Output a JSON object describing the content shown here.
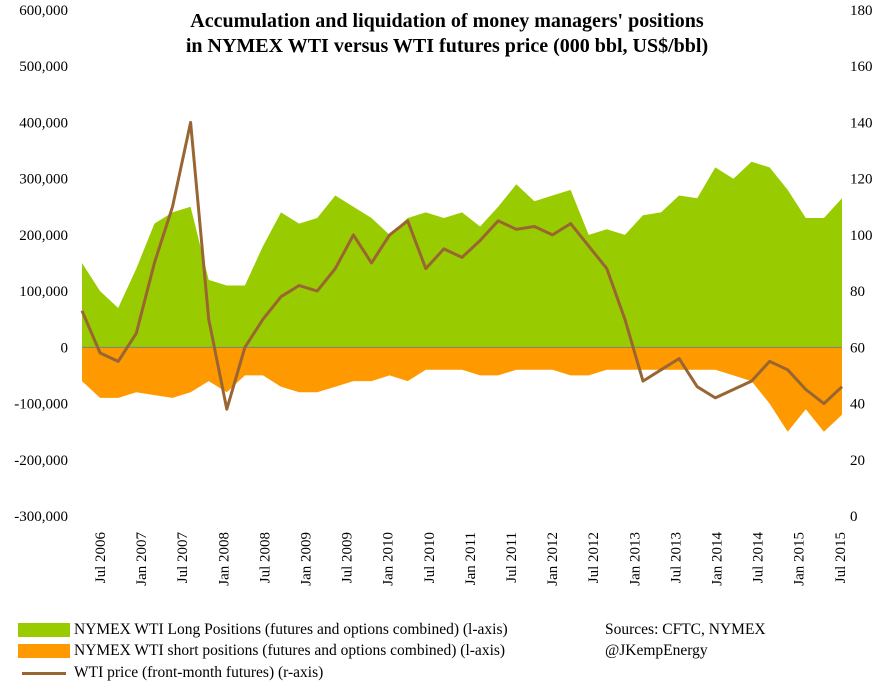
{
  "chart_data": {
    "type": "area",
    "title": [
      "Accumulation and liquidation of  money managers' positions",
      "in NYMEX WTI versus WTI futures price (000 bbl, US$/bbl)"
    ],
    "x_labels": [
      "Jul 2006",
      "Jan 2007",
      "Jul 2007",
      "Jan 2008",
      "Jul 2008",
      "Jan 2009",
      "Jul 2009",
      "Jan 2010",
      "Jul 2010",
      "Jan 2011",
      "Jul 2011",
      "Jan 2012",
      "Jul 2012",
      "Jan 2013",
      "Jul 2013",
      "Jan 2014",
      "Jul 2014",
      "Jan 2015",
      "Jul 2015"
    ],
    "y_left": {
      "min": -300000,
      "max": 600000,
      "ticks": [
        "600,000",
        "500,000",
        "400,000",
        "300,000",
        "200,000",
        "100,000",
        "0",
        "-100,000",
        "-200,000",
        "-300,000"
      ]
    },
    "y_right": {
      "min": 0,
      "max": 180,
      "ticks": [
        "180",
        "160",
        "140",
        "120",
        "100",
        "80",
        "60",
        "40",
        "20",
        "0"
      ]
    },
    "series": [
      {
        "name": "NYMEX WTI Long Positions (futures and options combined) (l-axis)",
        "axis": "left",
        "kind": "area",
        "color": "#99cc00",
        "points": [
          [
            0,
            150000
          ],
          [
            1,
            100000
          ],
          [
            2,
            70000
          ],
          [
            3,
            140000
          ],
          [
            4,
            220000
          ],
          [
            5,
            240000
          ],
          [
            6,
            250000
          ],
          [
            7,
            120000
          ],
          [
            8,
            110000
          ],
          [
            9,
            110000
          ],
          [
            10,
            180000
          ],
          [
            11,
            240000
          ],
          [
            12,
            220000
          ],
          [
            13,
            230000
          ],
          [
            14,
            270000
          ],
          [
            15,
            250000
          ],
          [
            16,
            230000
          ],
          [
            17,
            200000
          ],
          [
            18,
            230000
          ],
          [
            19,
            240000
          ],
          [
            20,
            230000
          ],
          [
            21,
            240000
          ],
          [
            22,
            215000
          ],
          [
            23,
            250000
          ],
          [
            24,
            290000
          ],
          [
            25,
            260000
          ],
          [
            26,
            270000
          ],
          [
            27,
            280000
          ],
          [
            28,
            200000
          ],
          [
            29,
            210000
          ],
          [
            30,
            200000
          ],
          [
            31,
            235000
          ],
          [
            32,
            240000
          ],
          [
            33,
            270000
          ],
          [
            34,
            265000
          ],
          [
            35,
            320000
          ],
          [
            36,
            300000
          ],
          [
            37,
            330000
          ],
          [
            38,
            320000
          ],
          [
            39,
            280000
          ],
          [
            40,
            230000
          ],
          [
            41,
            230000
          ],
          [
            42,
            265000
          ]
        ]
      },
      {
        "name": "NYMEX WTI short positions (futures and options combined) (l-axis)",
        "axis": "left",
        "kind": "area",
        "color": "#ff9900",
        "points": [
          [
            0,
            -60000
          ],
          [
            1,
            -90000
          ],
          [
            2,
            -90000
          ],
          [
            3,
            -80000
          ],
          [
            4,
            -85000
          ],
          [
            5,
            -90000
          ],
          [
            6,
            -80000
          ],
          [
            7,
            -60000
          ],
          [
            8,
            -80000
          ],
          [
            9,
            -50000
          ],
          [
            10,
            -50000
          ],
          [
            11,
            -70000
          ],
          [
            12,
            -80000
          ],
          [
            13,
            -80000
          ],
          [
            14,
            -70000
          ],
          [
            15,
            -60000
          ],
          [
            16,
            -60000
          ],
          [
            17,
            -50000
          ],
          [
            18,
            -60000
          ],
          [
            19,
            -40000
          ],
          [
            20,
            -40000
          ],
          [
            21,
            -40000
          ],
          [
            22,
            -50000
          ],
          [
            23,
            -50000
          ],
          [
            24,
            -40000
          ],
          [
            25,
            -40000
          ],
          [
            26,
            -40000
          ],
          [
            27,
            -50000
          ],
          [
            28,
            -50000
          ],
          [
            29,
            -40000
          ],
          [
            30,
            -40000
          ],
          [
            31,
            -40000
          ],
          [
            32,
            -40000
          ],
          [
            33,
            -40000
          ],
          [
            34,
            -40000
          ],
          [
            35,
            -40000
          ],
          [
            36,
            -50000
          ],
          [
            37,
            -60000
          ],
          [
            38,
            -100000
          ],
          [
            39,
            -150000
          ],
          [
            40,
            -110000
          ],
          [
            41,
            -150000
          ],
          [
            42,
            -120000
          ]
        ]
      },
      {
        "name": "WTI price (front-month futures) (r-axis)",
        "axis": "right",
        "kind": "line",
        "color": "#996633",
        "points": [
          [
            0,
            73
          ],
          [
            1,
            58
          ],
          [
            2,
            55
          ],
          [
            3,
            65
          ],
          [
            4,
            90
          ],
          [
            5,
            110
          ],
          [
            6,
            140
          ],
          [
            7,
            70
          ],
          [
            8,
            38
          ],
          [
            9,
            60
          ],
          [
            10,
            70
          ],
          [
            11,
            78
          ],
          [
            12,
            82
          ],
          [
            13,
            80
          ],
          [
            14,
            88
          ],
          [
            15,
            100
          ],
          [
            16,
            90
          ],
          [
            17,
            100
          ],
          [
            18,
            105
          ],
          [
            19,
            88
          ],
          [
            20,
            95
          ],
          [
            21,
            92
          ],
          [
            22,
            98
          ],
          [
            23,
            105
          ],
          [
            24,
            102
          ],
          [
            25,
            103
          ],
          [
            26,
            100
          ],
          [
            27,
            104
          ],
          [
            28,
            96
          ],
          [
            29,
            88
          ],
          [
            30,
            70
          ],
          [
            31,
            48
          ],
          [
            32,
            52
          ],
          [
            33,
            56
          ],
          [
            34,
            46
          ],
          [
            35,
            42
          ],
          [
            36,
            45
          ],
          [
            37,
            48
          ],
          [
            38,
            55
          ],
          [
            39,
            52
          ],
          [
            40,
            45
          ],
          [
            41,
            40
          ],
          [
            42,
            46
          ]
        ]
      }
    ]
  },
  "legend": {
    "long": "NYMEX WTI Long Positions (futures and options combined) (l-axis)",
    "short": "NYMEX WTI short positions (futures and options combined) (l-axis)",
    "price": "WTI price (front-month futures) (r-axis)"
  },
  "sources": {
    "line1": "Sources: CFTC, NYMEX",
    "line2": "@JKempEnergy"
  }
}
